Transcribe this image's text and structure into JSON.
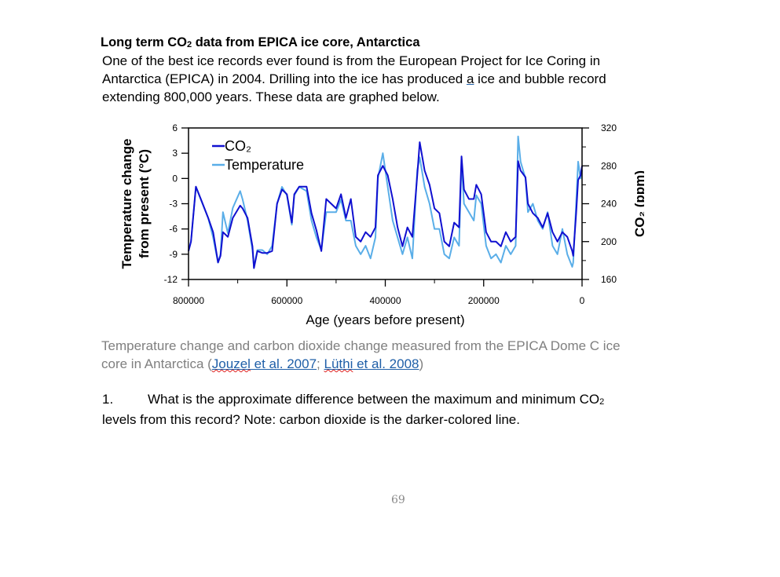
{
  "header": {
    "title_pre": "Long term CO",
    "title_sub": "2",
    "title_post": " data from EPICA ice core, Antarctica"
  },
  "intro": {
    "line1": "One of the best ice records ever found is from the European Project for Ice Coring in",
    "line2_pre": "Antarctica (EPICA) in 2004. Drilling into the ice has produced ",
    "line2_link": "a",
    "line2_post": " ice and bubble record",
    "line3": "extending 800,000 years. These data are graphed below."
  },
  "caption": {
    "line1": "Temperature change and carbon dioxide change measured from the EPICA Dome C ice",
    "line2_pre": "core in Antarctica (",
    "link1_name": "Jouzel",
    "link1_rest": " et al. 2007",
    "sep": "; ",
    "link2_name": "Lüthi",
    "link2_rest": " et al. 2008",
    "line2_post": ")"
  },
  "question": {
    "number": "1.",
    "line1_pre": "What is the approximate difference between the maximum and minimum CO",
    "line1_sub": "2",
    "line2": "levels from this record? Note: carbon dioxide is the darker-colored line."
  },
  "page_number": "69",
  "chart_data": {
    "type": "line",
    "xlabel": "Age (years before present)",
    "ylabel_left_line1": "Temperature change",
    "ylabel_left_line2": "from present (°C)",
    "ylabel_right": "CO₂ (ppm)",
    "xlim": [
      800000,
      0
    ],
    "ylim_left": [
      -12,
      6
    ],
    "ylim_right": [
      160,
      320
    ],
    "x_ticks": [
      "800000",
      "600000",
      "400000",
      "200000",
      "0"
    ],
    "y_ticks_left": [
      "6",
      "3",
      "0",
      "-3",
      "-6",
      "-9",
      "-12"
    ],
    "y_ticks_right": [
      "320",
      "280",
      "240",
      "200",
      "160"
    ],
    "legend_placement": "top-left",
    "grid": false,
    "x": [
      800000,
      795000,
      785000,
      775000,
      760000,
      750000,
      740000,
      735000,
      730000,
      720000,
      710000,
      695000,
      690000,
      680000,
      670000,
      667000,
      660000,
      650000,
      640000,
      630000,
      620000,
      610000,
      600000,
      590000,
      585000,
      575000,
      560000,
      550000,
      540000,
      530000,
      520000,
      510000,
      500000,
      490000,
      480000,
      470000,
      460000,
      450000,
      440000,
      430000,
      420000,
      415000,
      405000,
      395000,
      385000,
      375000,
      365000,
      355000,
      345000,
      335000,
      330000,
      320000,
      310000,
      300000,
      290000,
      280000,
      270000,
      260000,
      250000,
      245000,
      240000,
      230000,
      220000,
      215000,
      205000,
      195000,
      185000,
      175000,
      165000,
      155000,
      145000,
      135000,
      130000,
      125000,
      115000,
      110000,
      100000,
      90000,
      80000,
      70000,
      60000,
      50000,
      40000,
      30000,
      20000,
      18000,
      12000,
      8000,
      3000,
      0
    ],
    "series": [
      {
        "name": "CO₂",
        "axis": "right",
        "color": "#1010d0",
        "values": [
          190,
          200,
          258,
          245,
          225,
          210,
          178,
          185,
          210,
          205,
          225,
          238,
          235,
          225,
          195,
          172,
          190,
          188,
          188,
          190,
          240,
          255,
          250,
          220,
          250,
          258,
          258,
          230,
          212,
          190,
          245,
          240,
          235,
          250,
          225,
          245,
          205,
          200,
          210,
          205,
          215,
          270,
          280,
          270,
          245,
          215,
          195,
          215,
          205,
          270,
          305,
          275,
          260,
          235,
          230,
          200,
          195,
          220,
          215,
          290,
          255,
          245,
          245,
          260,
          250,
          210,
          200,
          200,
          195,
          210,
          200,
          205,
          285,
          275,
          268,
          240,
          230,
          225,
          215,
          230,
          210,
          200,
          210,
          205,
          190,
          185,
          230,
          265,
          270,
          280
        ]
      },
      {
        "name": "Temperature",
        "axis": "left",
        "color": "#5aaee8",
        "values": [
          -8.6,
          -7.5,
          -1.0,
          -2.5,
          -4.7,
          -7,
          -10,
          -9,
          -4,
          -6.5,
          -3.5,
          -1.5,
          -2.5,
          -5,
          -8.5,
          -10.5,
          -8.5,
          -8.5,
          -9,
          -8,
          -3,
          -1,
          -2,
          -5.5,
          -2,
          -1,
          -1.5,
          -5,
          -7,
          -8.5,
          -4,
          -4,
          -4,
          -2.5,
          -5,
          -5,
          -8,
          -9,
          -8,
          -9.5,
          -7,
          0,
          3,
          -1,
          -5,
          -7,
          -9,
          -7,
          -9.5,
          1,
          2.5,
          -1,
          -3,
          -6,
          -6,
          -9,
          -9.5,
          -7,
          -8,
          2,
          -3,
          -4,
          -5,
          -2,
          -3,
          -8,
          -9.5,
          -9,
          -10,
          -8,
          -9,
          -8,
          5,
          2,
          0,
          -4,
          -3,
          -5,
          -6,
          -4,
          -8,
          -9,
          -6,
          -9,
          -10.5,
          -10,
          -3,
          2,
          0,
          1
        ]
      }
    ]
  }
}
